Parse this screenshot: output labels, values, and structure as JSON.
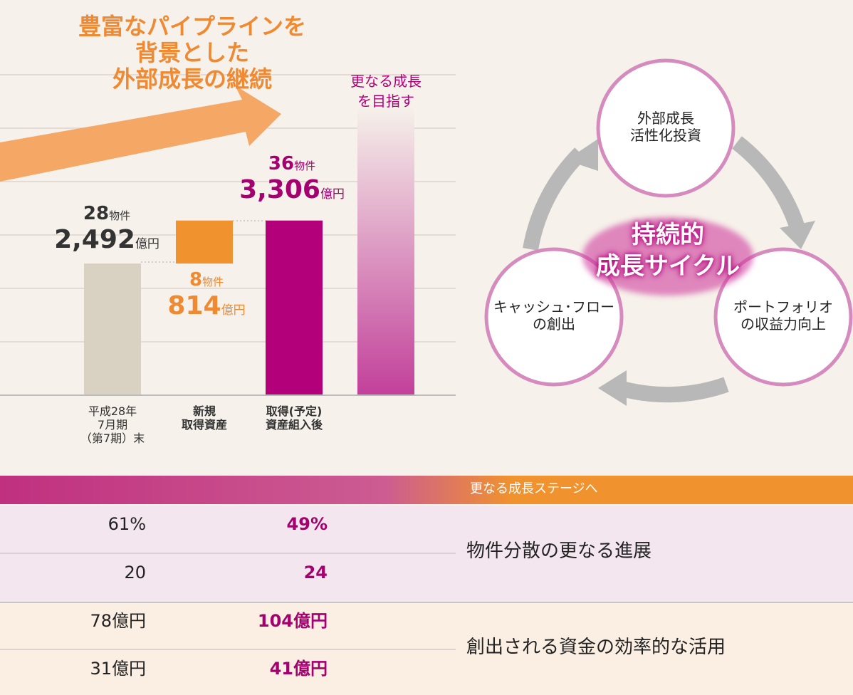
{
  "chart_data": {
    "type": "bar",
    "headline": [
      "豊富なパイプラインを",
      "背景とした",
      "外部成長の継続"
    ],
    "annotation": [
      "更なる成長",
      "を目指す"
    ],
    "categories": [
      "平成28年\n7月期\n（第7期）末",
      "新規\n取得資産",
      "取得(予定)\n資産組入後"
    ],
    "values": [
      2492,
      814,
      3306
    ],
    "value_labels": [
      "2,492",
      "814",
      "3,306"
    ],
    "unit": "億円",
    "counts": [
      28,
      8,
      36
    ],
    "count_unit": "物件",
    "colors": [
      "#d9d1c1",
      "#f0922e",
      "#b3007a"
    ]
  },
  "cycle": {
    "center": [
      "持続的",
      "成長サイクル"
    ],
    "nodes": [
      {
        "label": "外部成長\n活性化投資"
      },
      {
        "label": "ポートフォリオ\nの収益力向上"
      },
      {
        "label": "キャッシュ･フロー\nの創出"
      }
    ]
  },
  "table": {
    "banner": "更なる成長ステージへ",
    "groups": [
      {
        "label": "物件分散の更なる進展",
        "rows": [
          [
            "61%",
            "49%"
          ],
          [
            "20",
            "24"
          ]
        ]
      },
      {
        "label": "創出される資金の効率的な活用",
        "rows": [
          [
            "78億円",
            "104億円"
          ],
          [
            "31億円",
            "41億円"
          ]
        ]
      }
    ]
  }
}
